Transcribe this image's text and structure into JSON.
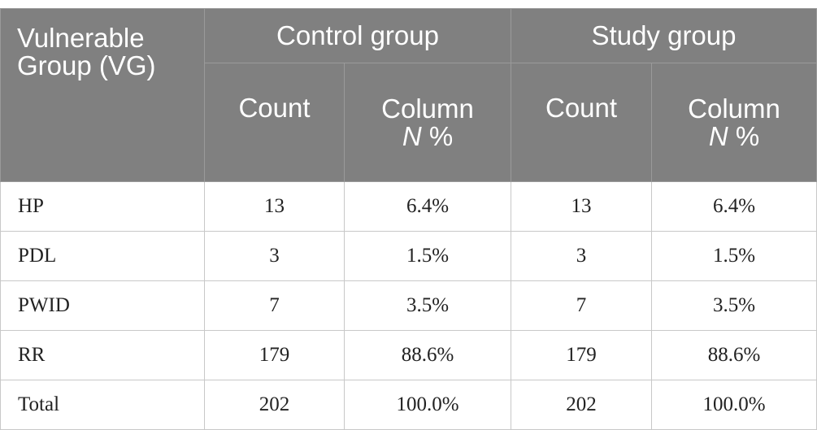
{
  "table": {
    "header": {
      "row_label_heading": "Vulnerable Group (VG)",
      "groups": [
        "Control group",
        "Study group"
      ],
      "count_label": "Count",
      "percent_label_line1": "Column",
      "percent_label_n": "N",
      "percent_label_suffix": "%"
    },
    "rows": [
      {
        "label": "HP",
        "control_count": "13",
        "control_pct": "6.4%",
        "study_count": "13",
        "study_pct": "6.4%"
      },
      {
        "label": "PDL",
        "control_count": "3",
        "control_pct": "1.5%",
        "study_count": "3",
        "study_pct": "1.5%"
      },
      {
        "label": "PWID",
        "control_count": "7",
        "control_pct": "3.5%",
        "study_count": "7",
        "study_pct": "3.5%"
      },
      {
        "label": "RR",
        "control_count": "179",
        "control_pct": "88.6%",
        "study_count": "179",
        "study_pct": "88.6%"
      },
      {
        "label": "Total",
        "control_count": "202",
        "control_pct": "100.0%",
        "study_count": "202",
        "study_pct": "100.0%"
      }
    ]
  },
  "colors": {
    "header_background": "#808080",
    "header_text": "#ffffff",
    "grid_line": "#c8c8c8",
    "body_text": "#222222"
  }
}
